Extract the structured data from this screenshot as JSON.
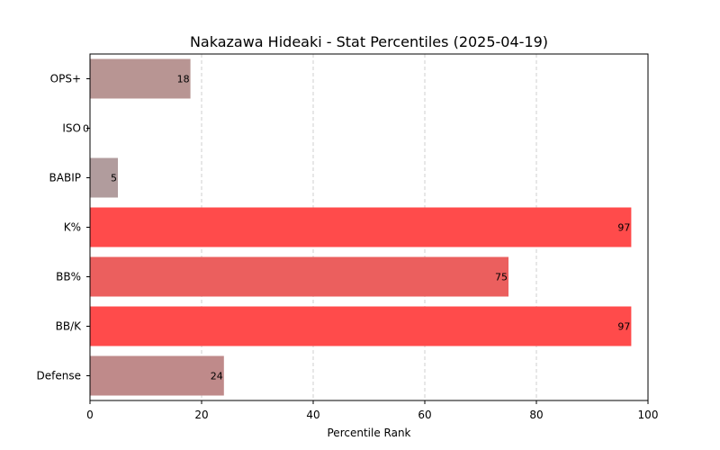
{
  "chart_data": {
    "type": "bar",
    "orientation": "horizontal",
    "title": "Nakazawa Hideaki - Stat Percentiles (2025-04-19)",
    "xlabel": "Percentile Rank",
    "ylabel": "",
    "xlim": [
      0,
      100
    ],
    "xticks": [
      0,
      20,
      40,
      60,
      80,
      100
    ],
    "grid": "x-dashed",
    "categories": [
      "OPS+",
      "ISO",
      "BABIP",
      "K%",
      "BB%",
      "BB/K",
      "Defense"
    ],
    "values": [
      18,
      0,
      5,
      97,
      75,
      97,
      24
    ],
    "labels": [
      "18",
      "0",
      "5",
      "97",
      "75",
      "97",
      "24"
    ],
    "colors": [
      "#b89593",
      "#b0a8a8",
      "#b19c9d",
      "#ff4b4b",
      "#eb5f5e",
      "#ff4b4b",
      "#bf8a8a"
    ]
  }
}
